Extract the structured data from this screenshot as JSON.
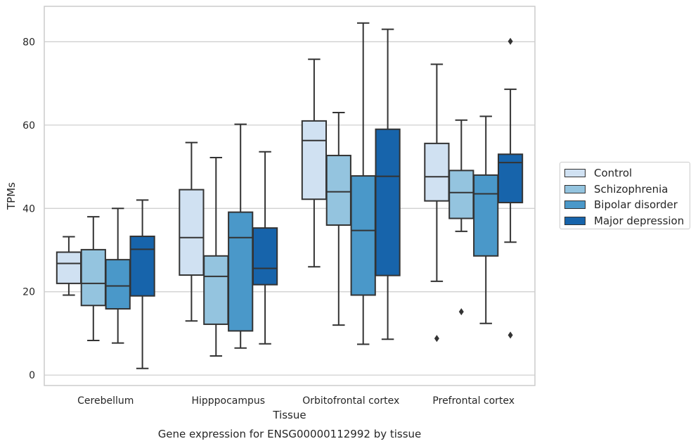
{
  "chart_data": {
    "type": "box",
    "title": "",
    "caption": "Gene expression for ENSG00000112992 by tissue",
    "xlabel": "Tissue",
    "ylabel": "TPMs",
    "ylim": [
      -2.5,
      88.5
    ],
    "yticks": [
      0,
      20,
      40,
      60,
      80
    ],
    "grid": "horizontal",
    "legend_position": "right",
    "categories": [
      "Cerebellum",
      "Hipppocampus",
      "Orbitofrontal cortex",
      "Prefrontal cortex"
    ],
    "series": [
      {
        "name": "Control",
        "color": "#d0e1f2",
        "boxes": [
          {
            "whisker_low": 19.2,
            "q1": 22.0,
            "median": 26.8,
            "q3": 29.5,
            "whisker_high": 33.2,
            "outliers": []
          },
          {
            "whisker_low": 13.0,
            "q1": 24.0,
            "median": 33.0,
            "q3": 44.5,
            "whisker_high": 55.8,
            "outliers": []
          },
          {
            "whisker_low": 26.0,
            "q1": 42.2,
            "median": 56.3,
            "q3": 61.0,
            "whisker_high": 75.8,
            "outliers": []
          },
          {
            "whisker_low": 22.5,
            "q1": 41.8,
            "median": 47.6,
            "q3": 55.6,
            "whisker_high": 74.6,
            "outliers": [
              8.8
            ]
          }
        ]
      },
      {
        "name": "Schizophrenia",
        "color": "#94c4df",
        "boxes": [
          {
            "whisker_low": 8.3,
            "q1": 16.7,
            "median": 22.0,
            "q3": 30.1,
            "whisker_high": 38.0,
            "outliers": []
          },
          {
            "whisker_low": 4.6,
            "q1": 12.2,
            "median": 23.7,
            "q3": 28.6,
            "whisker_high": 52.2,
            "outliers": []
          },
          {
            "whisker_low": 12.0,
            "q1": 36.0,
            "median": 44.0,
            "q3": 52.7,
            "whisker_high": 63.0,
            "outliers": []
          },
          {
            "whisker_low": 34.5,
            "q1": 37.6,
            "median": 43.8,
            "q3": 49.1,
            "whisker_high": 61.2,
            "outliers": [
              15.2
            ]
          }
        ]
      },
      {
        "name": "Bipolar disorder",
        "color": "#4a98c9",
        "boxes": [
          {
            "whisker_low": 7.7,
            "q1": 15.9,
            "median": 21.4,
            "q3": 27.7,
            "whisker_high": 40.0,
            "outliers": []
          },
          {
            "whisker_low": 6.5,
            "q1": 10.6,
            "median": 33.0,
            "q3": 39.1,
            "whisker_high": 60.2,
            "outliers": []
          },
          {
            "whisker_low": 7.4,
            "q1": 19.2,
            "median": 34.7,
            "q3": 47.8,
            "whisker_high": 84.5,
            "outliers": []
          },
          {
            "whisker_low": 12.4,
            "q1": 28.6,
            "median": 43.5,
            "q3": 48.0,
            "whisker_high": 62.1,
            "outliers": []
          }
        ]
      },
      {
        "name": "Major depression",
        "color": "#1764ab",
        "boxes": [
          {
            "whisker_low": 1.6,
            "q1": 19.0,
            "median": 30.2,
            "q3": 33.3,
            "whisker_high": 42.0,
            "outliers": []
          },
          {
            "whisker_low": 7.5,
            "q1": 21.7,
            "median": 25.6,
            "q3": 35.3,
            "whisker_high": 53.6,
            "outliers": []
          },
          {
            "whisker_low": 8.6,
            "q1": 23.9,
            "median": 47.7,
            "q3": 59.0,
            "whisker_high": 83.0,
            "outliers": []
          },
          {
            "whisker_low": 31.9,
            "q1": 41.4,
            "median": 51.0,
            "q3": 53.0,
            "whisker_high": 68.6,
            "outliers": [
              80.1,
              9.6
            ]
          }
        ]
      }
    ]
  }
}
